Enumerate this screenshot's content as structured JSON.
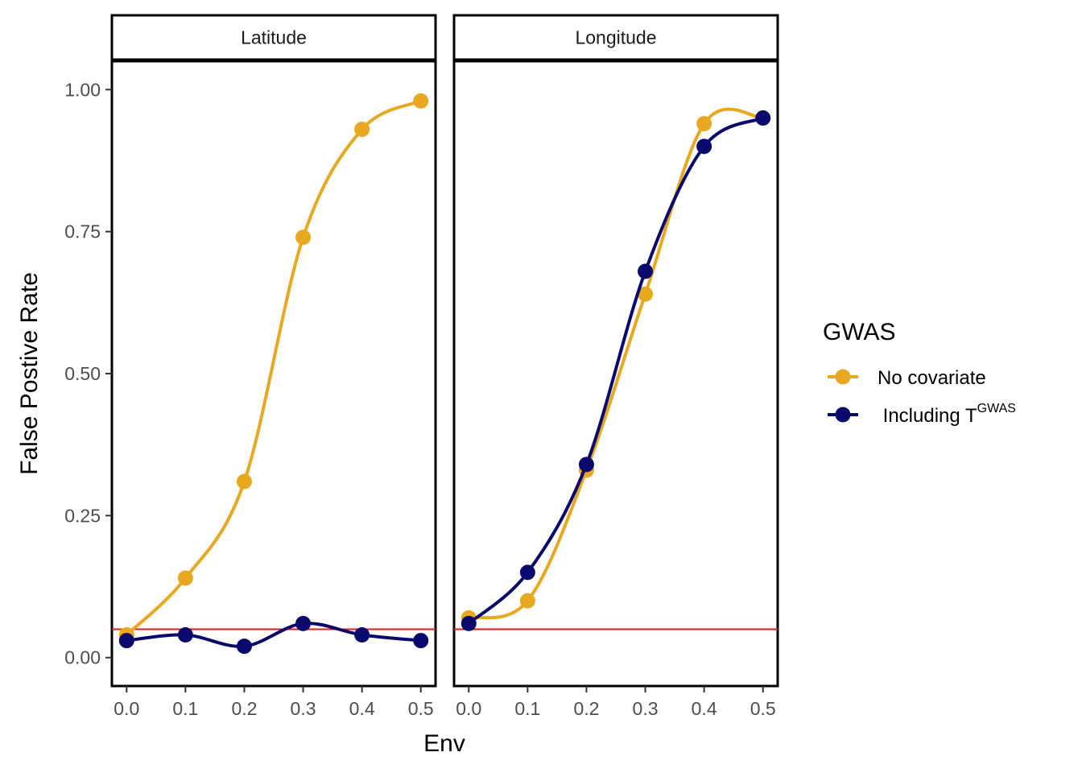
{
  "chart_data": {
    "type": "line",
    "y_label": "False Postive Rate",
    "x_label": "Env",
    "x_ticks": [
      "0.0",
      "0.1",
      "0.2",
      "0.3",
      "0.4",
      "0.5"
    ],
    "x_tick_values": [
      0,
      0.1,
      0.2,
      0.3,
      0.4,
      0.5
    ],
    "y_ticks": [
      "0.00",
      "0.25",
      "0.50",
      "0.75",
      "1.00"
    ],
    "y_tick_values": [
      0,
      0.25,
      0.5,
      0.75,
      1.0
    ],
    "xlim": [
      -0.025,
      0.525
    ],
    "ylim": [
      -0.05,
      1.05
    ],
    "reference_line": {
      "y": 0.05,
      "color": "#e41a1c"
    },
    "legend": {
      "title": "GWAS",
      "position": "right",
      "entries": [
        {
          "series": "No covariate",
          "label": "No covariate"
        },
        {
          "series": "Including T GWAS",
          "label_prefix": " Including T",
          "label_superscript": "GWAS"
        }
      ]
    },
    "series_colors": {
      "No covariate": "#e8a820",
      "Including T GWAS": "#0a0a6e"
    },
    "panels": [
      {
        "strip": "Latitude",
        "x": [
          0,
          0.1,
          0.2,
          0.3,
          0.4,
          0.5
        ],
        "series": [
          {
            "name": "No covariate",
            "values": [
              0.04,
              0.14,
              0.31,
              0.74,
              0.93,
              0.98
            ]
          },
          {
            "name": "Including T GWAS",
            "values": [
              0.03,
              0.04,
              0.02,
              0.06,
              0.04,
              0.03
            ]
          }
        ]
      },
      {
        "strip": "Longitude",
        "x": [
          0,
          0.1,
          0.2,
          0.3,
          0.4,
          0.5
        ],
        "series": [
          {
            "name": "No covariate",
            "values": [
              0.07,
              0.1,
              0.33,
              0.64,
              0.94,
              0.95
            ]
          },
          {
            "name": "Including T GWAS",
            "values": [
              0.06,
              0.15,
              0.34,
              0.68,
              0.9,
              0.95
            ]
          }
        ]
      }
    ]
  }
}
